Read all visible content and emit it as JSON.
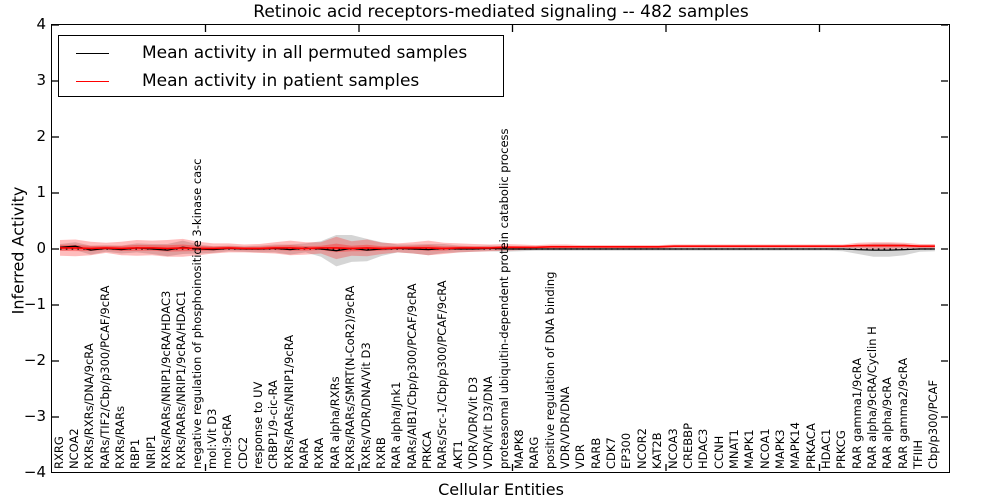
{
  "title": "Retinoic acid receptors-mediated signaling -- 482 samples",
  "xlabel": "Cellular Entities",
  "ylabel": "Inferred Activity",
  "legend": {
    "permuted_label": "Mean activity in all permuted samples",
    "patient_label": "Mean activity in patient samples"
  },
  "colors": {
    "permuted_line": "#000000",
    "patient_line": "#ff0000",
    "permuted_band": "#909090",
    "patient_band": "#ff2020",
    "axis": "#000000"
  },
  "y_tick_labels": [
    "4",
    "3",
    "2",
    "1",
    "0",
    "−1",
    "−2",
    "−3",
    "−4"
  ],
  "chart_data": {
    "type": "line",
    "title": "Retinoic acid receptors-mediated signaling -- 482 samples",
    "xlabel": "Cellular Entities",
    "ylabel": "Inferred Activity",
    "ylim": [
      -4,
      4
    ],
    "y_ticks": [
      4,
      3,
      2,
      1,
      0,
      -1,
      -2,
      -3,
      -4
    ],
    "grid": false,
    "zero_line_style": "dotted",
    "legend_position": "upper left",
    "categories": [
      "RXRG",
      "NCOA2",
      "RXRs/RXRs/DNA/9cRA",
      "RARs/TIF2/Cbp/p300/PCAF/9cRA",
      "RXRs/RARs",
      "RBP1",
      "NRIP1",
      "RXRs/RARs/NRIP1/9cRA/HDAC3",
      "RXRs/RARs/NRIP1/9cRA/HDAC1",
      "negative regulation of phosphoinositide 3-kinase casc",
      "mol:Vit D3",
      "mol:9cRA",
      "CDC2",
      "response to UV",
      "CRBP1/9-cic-RA",
      "RXRs/RARs/NRIP1/9cRA",
      "RARA",
      "RXRA",
      "RAR alpha/RXRs",
      "RXRs/RARs/SMRT(N-CoR2)/9cRA",
      "RXRs/VDR/DNA/Vit D3",
      "RXRB",
      "RAR alpha/Jnk1",
      "RARs/AIB1/Cbp/p300/PCAF/9cRA",
      "PRKCA",
      "RARs/Src-1/Cbp/p300/PCAF/9cRA",
      "AKT1",
      "VDR/VDR/Vit D3",
      "VDR/Vit D3/DNA",
      "proteasomal ubiquitin-dependent protein catabolic process",
      "MAPK8",
      "RARG",
      "positive regulation of DNA binding",
      "VDR/VDR/DNA",
      "VDR",
      "RARB",
      "CDK7",
      "EP300",
      "NCOR2",
      "KAT2B",
      "NCOA3",
      "CREBBP",
      "HDAC3",
      "CCNH",
      "MNAT1",
      "MAPK1",
      "NCOA1",
      "MAPK3",
      "MAPK14",
      "PRKACA",
      "HDAC1",
      "PRKCG",
      "RAR gamma1/9cRA",
      "RAR alpha/9cRA/Cyclin H",
      "RAR alpha/9cRA",
      "RAR gamma2/9cRA",
      "TFIIH",
      "Cbp/p300/PCAF"
    ],
    "series": [
      {
        "name": "Mean activity in all permuted samples",
        "color": "#000000",
        "values": [
          0.03,
          0.05,
          -0.02,
          0.01,
          -0.01,
          0.02,
          0,
          -0.02,
          0.03,
          0,
          -0.01,
          0.01,
          0,
          0,
          0.01,
          -0.01,
          0.02,
          0,
          -0.03,
          0.01,
          -0.02,
          0,
          0.01,
          0,
          -0.01,
          0.01,
          0,
          0,
          0.01,
          0,
          0,
          0,
          0,
          0,
          0,
          0,
          0,
          0,
          0,
          0,
          0,
          0,
          0,
          0,
          0,
          0,
          0,
          0,
          0,
          0,
          0,
          0,
          -0.01,
          -0.02,
          -0.02,
          -0.01,
          0,
          0
        ],
        "band": [
          0.06,
          0.07,
          0.08,
          0.06,
          0.07,
          0.08,
          0.09,
          0.11,
          0.12,
          0.08,
          0.06,
          0.05,
          0.05,
          0.06,
          0.07,
          0.09,
          0.08,
          0.14,
          0.28,
          0.24,
          0.2,
          0.12,
          0.07,
          0.08,
          0.1,
          0.08,
          0.06,
          0.05,
          0.05,
          0.05,
          0.04,
          0.03,
          0.03,
          0.03,
          0.03,
          0.03,
          0.03,
          0.03,
          0.03,
          0.03,
          0.03,
          0.03,
          0.03,
          0.03,
          0.03,
          0.03,
          0.03,
          0.03,
          0.03,
          0.03,
          0.03,
          0.04,
          0.08,
          0.12,
          0.12,
          0.1,
          0.05,
          0.04
        ]
      },
      {
        "name": "Mean activity in patient samples",
        "color": "#ff0000",
        "values": [
          0.02,
          0.02,
          0.01,
          0.02,
          0.01,
          0.02,
          0.02,
          0.01,
          0.02,
          0.01,
          0.01,
          0.02,
          0.01,
          0.01,
          0.02,
          0.02,
          0.01,
          0.02,
          0.02,
          0.01,
          0.02,
          0.01,
          0.02,
          0.02,
          0.02,
          0.01,
          0.02,
          0.02,
          0.02,
          0.03,
          0.03,
          0.03,
          0.04,
          0.04,
          0.04,
          0.04,
          0.04,
          0.04,
          0.04,
          0.04,
          0.05,
          0.05,
          0.05,
          0.05,
          0.05,
          0.05,
          0.05,
          0.05,
          0.05,
          0.05,
          0.05,
          0.05,
          0.06,
          0.06,
          0.06,
          0.06,
          0.05,
          0.05
        ],
        "band": [
          0.14,
          0.15,
          0.12,
          0.09,
          0.12,
          0.14,
          0.13,
          0.15,
          0.16,
          0.12,
          0.09,
          0.08,
          0.07,
          0.08,
          0.1,
          0.13,
          0.11,
          0.1,
          0.2,
          0.13,
          0.15,
          0.1,
          0.08,
          0.1,
          0.13,
          0.1,
          0.08,
          0.07,
          0.06,
          0.06,
          0.05,
          0.04,
          0.04,
          0.04,
          0.03,
          0.03,
          0.03,
          0.03,
          0.03,
          0.03,
          0.03,
          0.03,
          0.03,
          0.03,
          0.03,
          0.03,
          0.03,
          0.03,
          0.03,
          0.03,
          0.03,
          0.03,
          0.05,
          0.06,
          0.06,
          0.05,
          0.04,
          0.04
        ]
      }
    ]
  }
}
